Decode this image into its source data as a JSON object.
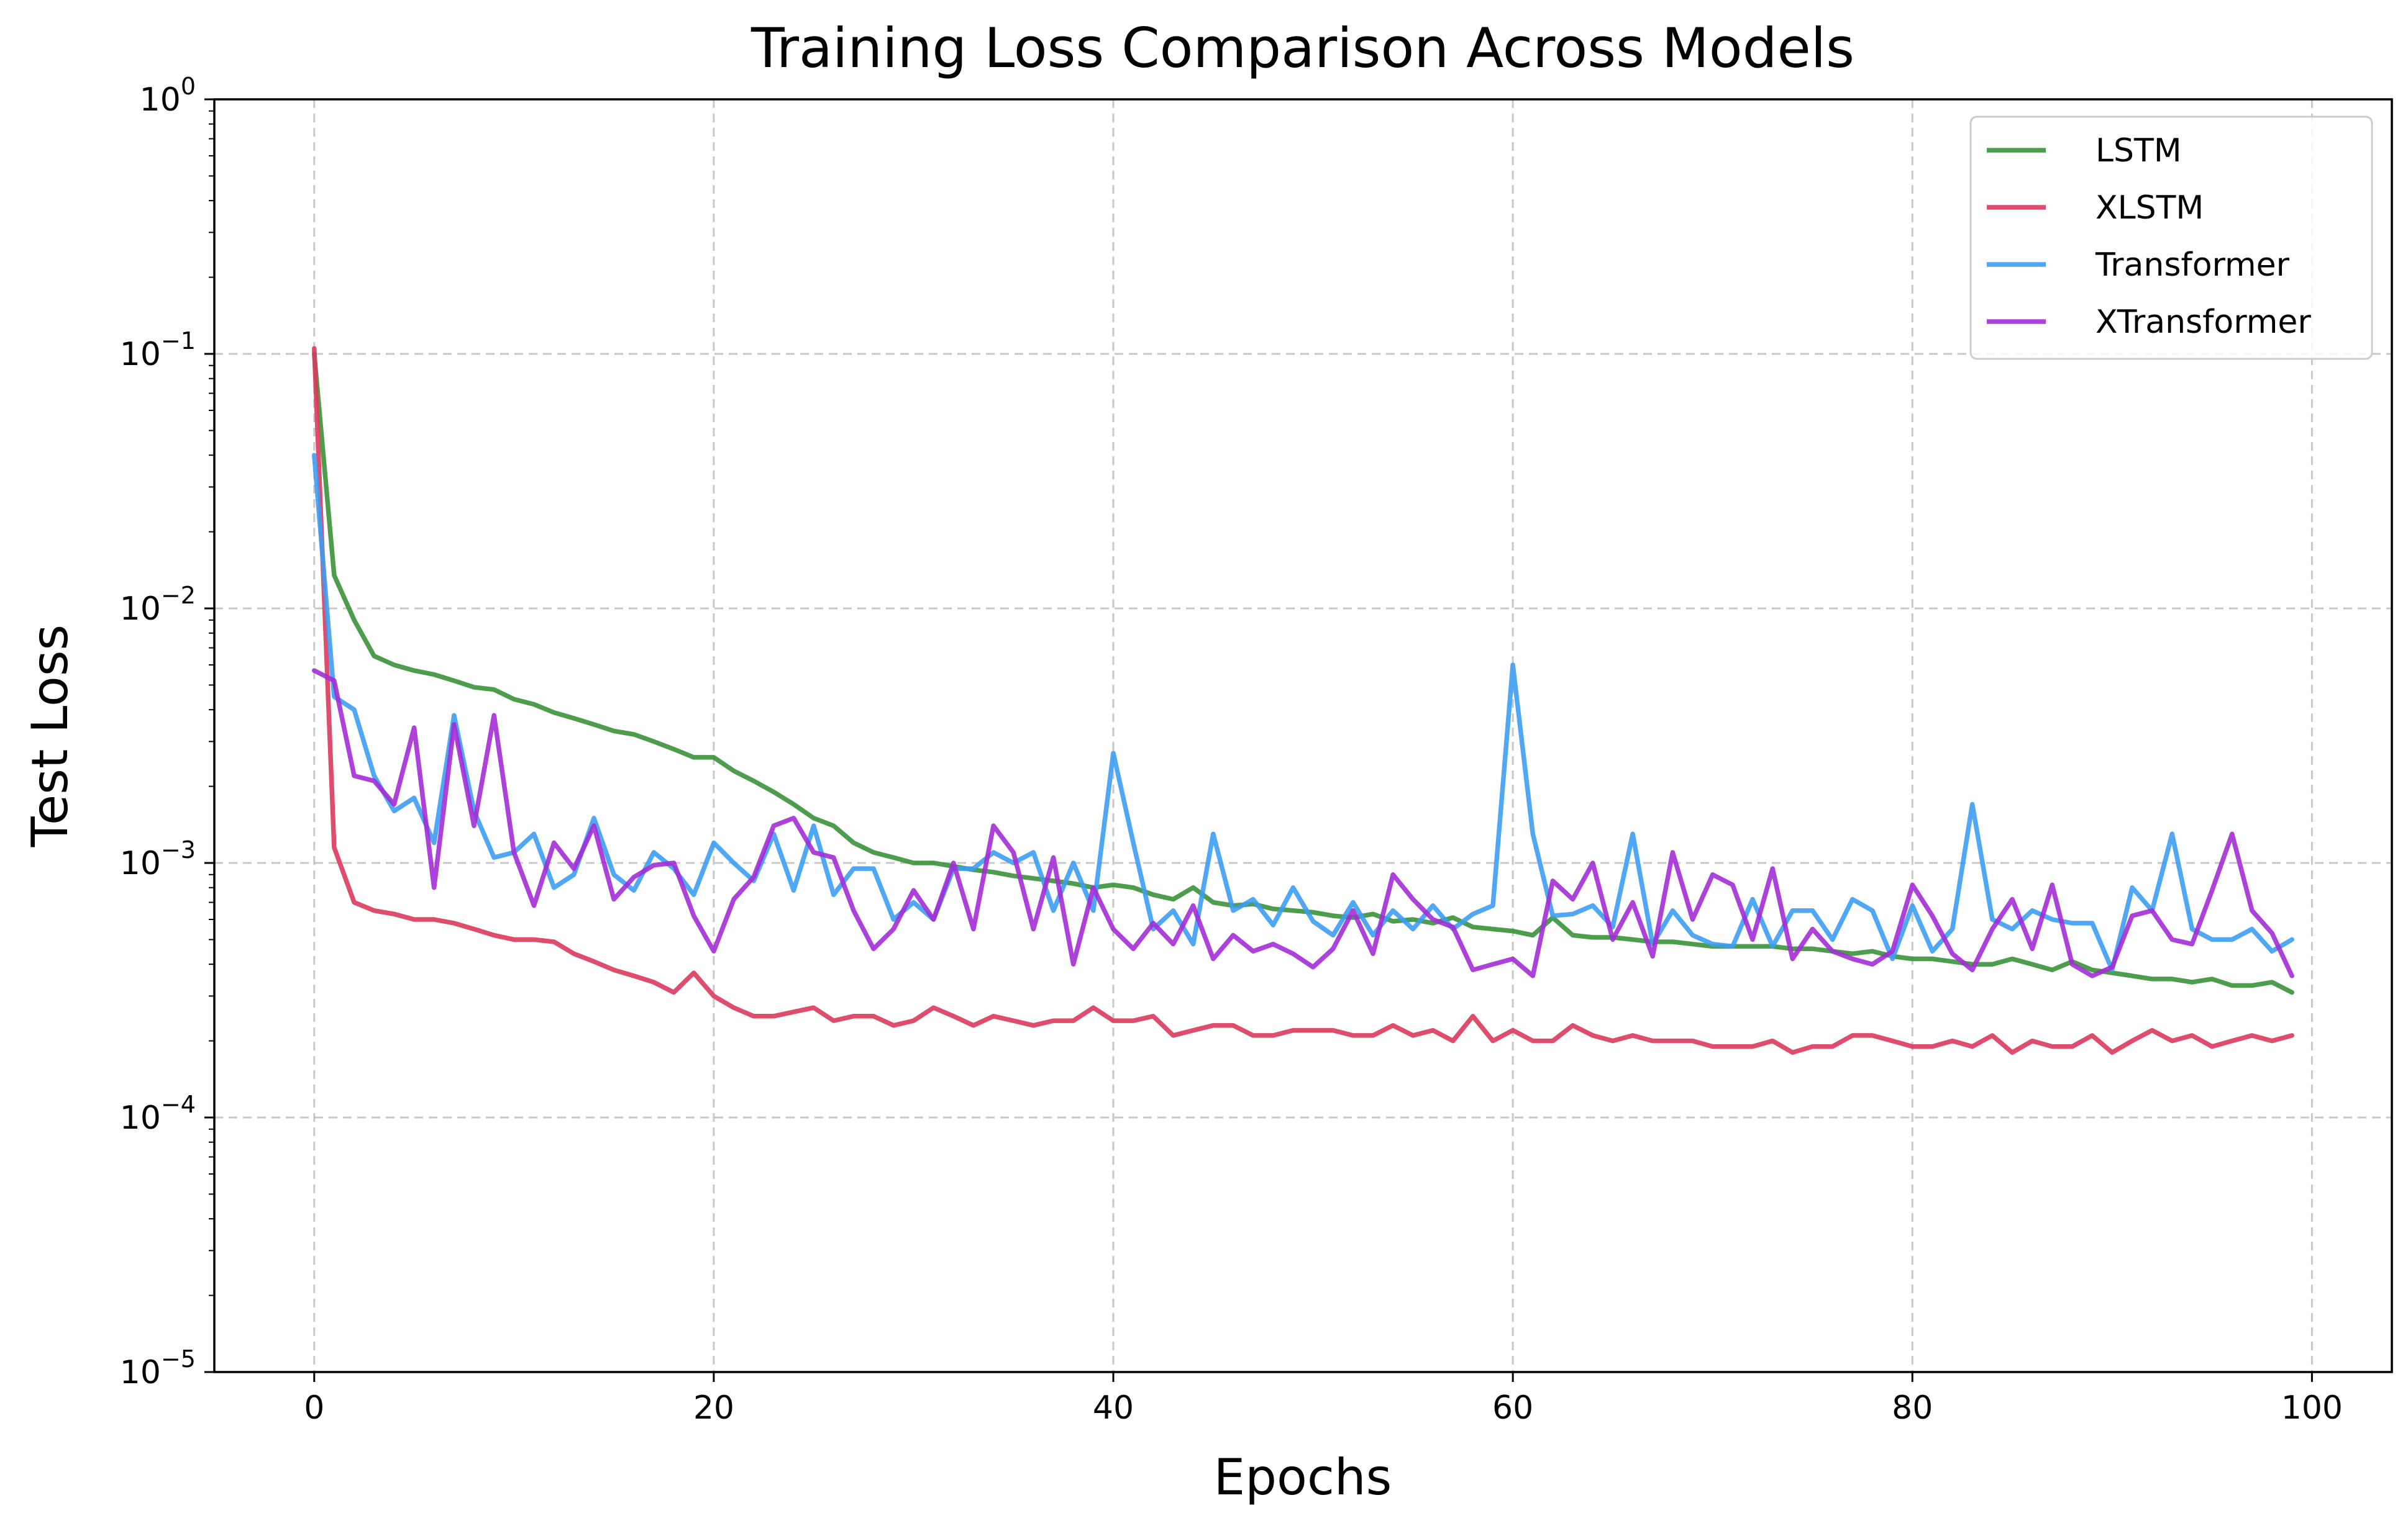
{
  "chart_data": {
    "type": "line",
    "title": "Training Loss Comparison Across Models",
    "xlabel": "Epochs",
    "ylabel": "Test Loss",
    "yscale": "log",
    "xlim": [
      -5,
      104
    ],
    "ylim": [
      1e-05,
      1
    ],
    "xticks": [
      0,
      20,
      40,
      60,
      80,
      100
    ],
    "xtick_labels": [
      "0",
      "20",
      "40",
      "60",
      "80",
      "100"
    ],
    "yticks": [
      {
        "value": 1,
        "base": "10",
        "exp": "0"
      },
      {
        "value": 0.1,
        "base": "10",
        "exp": "−1"
      },
      {
        "value": 0.01,
        "base": "10",
        "exp": "−2"
      },
      {
        "value": 0.001,
        "base": "10",
        "exp": "−3"
      },
      {
        "value": 0.0001,
        "base": "10",
        "exp": "−4"
      },
      {
        "value": 1e-05,
        "base": "10",
        "exp": "−5"
      }
    ],
    "grid": true,
    "legend_position": "top-right",
    "series": [
      {
        "name": "LSTM",
        "color": "#3a923a",
        "x": [
          0,
          1,
          2,
          3,
          4,
          5,
          6,
          7,
          8,
          9,
          10,
          11,
          12,
          13,
          14,
          15,
          16,
          17,
          18,
          19,
          20,
          21,
          22,
          23,
          24,
          25,
          26,
          27,
          28,
          29,
          30,
          31,
          32,
          33,
          34,
          35,
          36,
          37,
          38,
          39,
          40,
          41,
          42,
          43,
          44,
          45,
          46,
          47,
          48,
          49,
          50,
          51,
          52,
          53,
          54,
          55,
          56,
          57,
          58,
          59,
          60,
          61,
          62,
          63,
          64,
          65,
          66,
          67,
          68,
          69,
          70,
          71,
          72,
          73,
          74,
          75,
          76,
          77,
          78,
          79,
          80,
          81,
          82,
          83,
          84,
          85,
          86,
          87,
          88,
          89,
          90,
          91,
          92,
          93,
          94,
          95,
          96,
          97,
          98,
          99
        ],
        "values": [
          0.1,
          0.0135,
          0.009,
          0.0065,
          0.006,
          0.0057,
          0.0055,
          0.0052,
          0.0049,
          0.0048,
          0.0044,
          0.0042,
          0.0039,
          0.0037,
          0.0035,
          0.0033,
          0.0032,
          0.003,
          0.0028,
          0.0026,
          0.0026,
          0.0023,
          0.0021,
          0.0019,
          0.0017,
          0.0015,
          0.0014,
          0.0012,
          0.0011,
          0.00105,
          0.001,
          0.001,
          0.00097,
          0.00094,
          0.00092,
          0.00089,
          0.00087,
          0.00085,
          0.00083,
          0.0008,
          0.00082,
          0.0008,
          0.00075,
          0.00072,
          0.0008,
          0.0007,
          0.00068,
          0.00069,
          0.00066,
          0.00065,
          0.00064,
          0.00062,
          0.00061,
          0.00063,
          0.00059,
          0.0006,
          0.00058,
          0.00061,
          0.00056,
          0.00055,
          0.00054,
          0.00052,
          0.00061,
          0.00052,
          0.00051,
          0.00051,
          0.0005,
          0.00049,
          0.00049,
          0.00048,
          0.00047,
          0.00047,
          0.00047,
          0.00047,
          0.00046,
          0.00046,
          0.00045,
          0.00044,
          0.00045,
          0.00043,
          0.00042,
          0.00042,
          0.00041,
          0.0004,
          0.0004,
          0.00042,
          0.0004,
          0.00038,
          0.00041,
          0.00038,
          0.00037,
          0.00036,
          0.00035,
          0.00035,
          0.00034,
          0.00035,
          0.00033,
          0.00033,
          0.00034,
          0.00031
        ]
      },
      {
        "name": "XLSTM",
        "color": "#dc3a5c",
        "x": [
          0,
          1,
          2,
          3,
          4,
          5,
          6,
          7,
          8,
          9,
          10,
          11,
          12,
          13,
          14,
          15,
          16,
          17,
          18,
          19,
          20,
          21,
          22,
          23,
          24,
          25,
          26,
          27,
          28,
          29,
          30,
          31,
          32,
          33,
          34,
          35,
          36,
          37,
          38,
          39,
          40,
          41,
          42,
          43,
          44,
          45,
          46,
          47,
          48,
          49,
          50,
          51,
          52,
          53,
          54,
          55,
          56,
          57,
          58,
          59,
          60,
          61,
          62,
          63,
          64,
          65,
          66,
          67,
          68,
          69,
          70,
          71,
          72,
          73,
          74,
          75,
          76,
          77,
          78,
          79,
          80,
          81,
          82,
          83,
          84,
          85,
          86,
          87,
          88,
          89,
          90,
          91,
          92,
          93,
          94,
          95,
          96,
          97,
          98,
          99
        ],
        "values": [
          0.105,
          0.00115,
          0.0007,
          0.00065,
          0.00063,
          0.0006,
          0.0006,
          0.00058,
          0.00055,
          0.00052,
          0.0005,
          0.0005,
          0.00049,
          0.00044,
          0.00041,
          0.00038,
          0.00036,
          0.00034,
          0.00031,
          0.00037,
          0.0003,
          0.00027,
          0.00025,
          0.00025,
          0.00026,
          0.00027,
          0.00024,
          0.00025,
          0.00025,
          0.00023,
          0.00024,
          0.00027,
          0.00025,
          0.00023,
          0.00025,
          0.00024,
          0.00023,
          0.00024,
          0.00024,
          0.00027,
          0.00024,
          0.00024,
          0.00025,
          0.00021,
          0.00022,
          0.00023,
          0.00023,
          0.00021,
          0.00021,
          0.00022,
          0.00022,
          0.00022,
          0.00021,
          0.00021,
          0.00023,
          0.00021,
          0.00022,
          0.0002,
          0.00025,
          0.0002,
          0.00022,
          0.0002,
          0.0002,
          0.00023,
          0.00021,
          0.0002,
          0.00021,
          0.0002,
          0.0002,
          0.0002,
          0.00019,
          0.00019,
          0.00019,
          0.0002,
          0.00018,
          0.00019,
          0.00019,
          0.00021,
          0.00021,
          0.0002,
          0.00019,
          0.00019,
          0.0002,
          0.00019,
          0.00021,
          0.00018,
          0.0002,
          0.00019,
          0.00019,
          0.00021,
          0.00018,
          0.0002,
          0.00022,
          0.0002,
          0.00021,
          0.00019,
          0.0002,
          0.00021,
          0.0002,
          0.00021
        ]
      },
      {
        "name": "Transformer",
        "color": "#3d9df2",
        "x": [
          0,
          1,
          2,
          3,
          4,
          5,
          6,
          7,
          8,
          9,
          10,
          11,
          12,
          13,
          14,
          15,
          16,
          17,
          18,
          19,
          20,
          21,
          22,
          23,
          24,
          25,
          26,
          27,
          28,
          29,
          30,
          31,
          32,
          33,
          34,
          35,
          36,
          37,
          38,
          39,
          40,
          41,
          42,
          43,
          44,
          45,
          46,
          47,
          48,
          49,
          50,
          51,
          52,
          53,
          54,
          55,
          56,
          57,
          58,
          59,
          60,
          61,
          62,
          63,
          64,
          65,
          66,
          67,
          68,
          69,
          70,
          71,
          72,
          73,
          74,
          75,
          76,
          77,
          78,
          79,
          80,
          81,
          82,
          83,
          84,
          85,
          86,
          87,
          88,
          89,
          90,
          91,
          92,
          93,
          94,
          95,
          96,
          97,
          98,
          99
        ],
        "values": [
          0.04,
          0.0045,
          0.004,
          0.0022,
          0.0016,
          0.0018,
          0.0012,
          0.0038,
          0.0016,
          0.00105,
          0.0011,
          0.0013,
          0.0008,
          0.0009,
          0.0015,
          0.0009,
          0.00078,
          0.0011,
          0.00095,
          0.00075,
          0.0012,
          0.001,
          0.00085,
          0.0013,
          0.00078,
          0.0014,
          0.00075,
          0.00095,
          0.00095,
          0.0006,
          0.0007,
          0.0006,
          0.00095,
          0.00095,
          0.0011,
          0.001,
          0.0011,
          0.00065,
          0.001,
          0.00065,
          0.0027,
          0.0012,
          0.00055,
          0.00065,
          0.00048,
          0.0013,
          0.00065,
          0.00072,
          0.00057,
          0.0008,
          0.00059,
          0.00052,
          0.0007,
          0.00052,
          0.00065,
          0.00055,
          0.00068,
          0.00055,
          0.00063,
          0.00068,
          0.006,
          0.0013,
          0.00062,
          0.00063,
          0.00068,
          0.00056,
          0.0013,
          0.00048,
          0.00065,
          0.00052,
          0.00048,
          0.00047,
          0.00072,
          0.00047,
          0.00065,
          0.00065,
          0.0005,
          0.00072,
          0.00065,
          0.00042,
          0.00068,
          0.00045,
          0.00055,
          0.0017,
          0.0006,
          0.00055,
          0.00065,
          0.0006,
          0.00058,
          0.00058,
          0.00038,
          0.0008,
          0.00065,
          0.0013,
          0.00055,
          0.0005,
          0.0005,
          0.00055,
          0.00045,
          0.0005
        ]
      },
      {
        "name": "XTransformer",
        "color": "#a32dd5",
        "x": [
          0,
          1,
          2,
          3,
          4,
          5,
          6,
          7,
          8,
          9,
          10,
          11,
          12,
          13,
          14,
          15,
          16,
          17,
          18,
          19,
          20,
          21,
          22,
          23,
          24,
          25,
          26,
          27,
          28,
          29,
          30,
          31,
          32,
          33,
          34,
          35,
          36,
          37,
          38,
          39,
          40,
          41,
          42,
          43,
          44,
          45,
          46,
          47,
          48,
          49,
          50,
          51,
          52,
          53,
          54,
          55,
          56,
          57,
          58,
          59,
          60,
          61,
          62,
          63,
          64,
          65,
          66,
          67,
          68,
          69,
          70,
          71,
          72,
          73,
          74,
          75,
          76,
          77,
          78,
          79,
          80,
          81,
          82,
          83,
          84,
          85,
          86,
          87,
          88,
          89,
          90,
          91,
          92,
          93,
          94,
          95,
          96,
          97,
          98,
          99
        ],
        "values": [
          0.0057,
          0.0052,
          0.0022,
          0.0021,
          0.0017,
          0.0034,
          0.0008,
          0.0035,
          0.0014,
          0.0038,
          0.0011,
          0.00068,
          0.0012,
          0.00095,
          0.0014,
          0.00072,
          0.00088,
          0.00098,
          0.001,
          0.00062,
          0.00045,
          0.00072,
          0.00088,
          0.0014,
          0.0015,
          0.0011,
          0.00105,
          0.00065,
          0.00046,
          0.00055,
          0.00078,
          0.0006,
          0.001,
          0.00055,
          0.0014,
          0.0011,
          0.00055,
          0.00105,
          0.0004,
          0.0008,
          0.00055,
          0.00046,
          0.00058,
          0.00048,
          0.00068,
          0.00042,
          0.00052,
          0.00045,
          0.00048,
          0.00044,
          0.00039,
          0.00046,
          0.00065,
          0.00044,
          0.0009,
          0.00072,
          0.0006,
          0.00056,
          0.00038,
          0.0004,
          0.00042,
          0.00036,
          0.00085,
          0.00072,
          0.001,
          0.0005,
          0.0007,
          0.00043,
          0.0011,
          0.0006,
          0.0009,
          0.00082,
          0.0005,
          0.00095,
          0.00042,
          0.00055,
          0.00045,
          0.00042,
          0.0004,
          0.00045,
          0.00082,
          0.00062,
          0.00044,
          0.00038,
          0.00055,
          0.00072,
          0.00046,
          0.00082,
          0.0004,
          0.00036,
          0.00039,
          0.00062,
          0.00065,
          0.0005,
          0.00048,
          0.00078,
          0.0013,
          0.00065,
          0.00053,
          0.00036
        ]
      }
    ]
  }
}
